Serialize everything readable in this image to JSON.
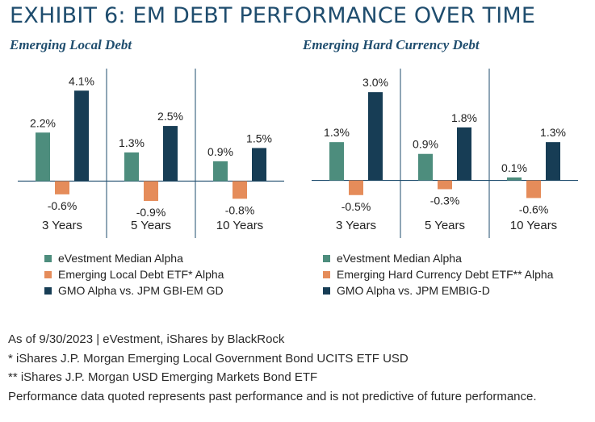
{
  "exhibit_title": "EXHIBIT 6: EM DEBT PERFORMANCE OVER TIME",
  "colors": {
    "title": "#1f4d6e",
    "evestment": "#4d8d7d",
    "etf": "#e58c5a",
    "gmo": "#173d55",
    "gridline": "#1f4d6e",
    "text": "#222222"
  },
  "chart_data": [
    {
      "type": "bar",
      "title": "Emerging Local Debt",
      "categories": [
        "3 Years",
        "5 Years",
        "10 Years"
      ],
      "series": [
        {
          "name": "eVestment Median Alpha",
          "values": [
            2.2,
            1.3,
            0.9
          ],
          "labels": [
            "2.2%",
            "1.3%",
            "0.9%"
          ]
        },
        {
          "name": "Emerging Local Debt ETF* Alpha",
          "values": [
            -0.6,
            -0.9,
            -0.8
          ],
          "labels": [
            "-0.6%",
            "-0.9%",
            "-0.8%"
          ]
        },
        {
          "name": "GMO Alpha vs. JPM GBI-EM GD",
          "values": [
            4.1,
            2.5,
            1.5
          ],
          "labels": [
            "4.1%",
            "2.5%",
            "1.5%"
          ]
        }
      ],
      "xlabel": "",
      "ylabel": "",
      "ylim": [
        -1.3,
        5.1
      ],
      "grid": false,
      "legend_position": "bottom"
    },
    {
      "type": "bar",
      "title": "Emerging Hard Currency Debt",
      "categories": [
        "3 Years",
        "5 Years",
        "10 Years"
      ],
      "series": [
        {
          "name": "eVestment Median Alpha",
          "values": [
            1.3,
            0.9,
            0.1
          ],
          "labels": [
            "1.3%",
            "0.9%",
            "0.1%"
          ]
        },
        {
          "name": "Emerging Hard Currency Debt ETF** Alpha",
          "values": [
            -0.5,
            -0.3,
            -0.6
          ],
          "labels": [
            "-0.5%",
            "-0.3%",
            "-0.6%"
          ]
        },
        {
          "name": "GMO Alpha vs. JPM EMBIG-D",
          "values": [
            3.0,
            1.8,
            1.3
          ],
          "labels": [
            "3.0%",
            "1.8%",
            "1.3%"
          ]
        }
      ],
      "xlabel": "",
      "ylabel": "",
      "ylim": [
        -1.0,
        3.8
      ],
      "grid": false,
      "legend_position": "bottom"
    }
  ],
  "footnotes": [
    "As of 9/30/2023 | eVestment, iShares by BlackRock",
    "* iShares J.P. Morgan Emerging Local Government Bond UCITS ETF USD",
    "** iShares J.P. Morgan USD Emerging Markets Bond ETF",
    "Performance data quoted represents past performance and is not predictive of future performance."
  ]
}
